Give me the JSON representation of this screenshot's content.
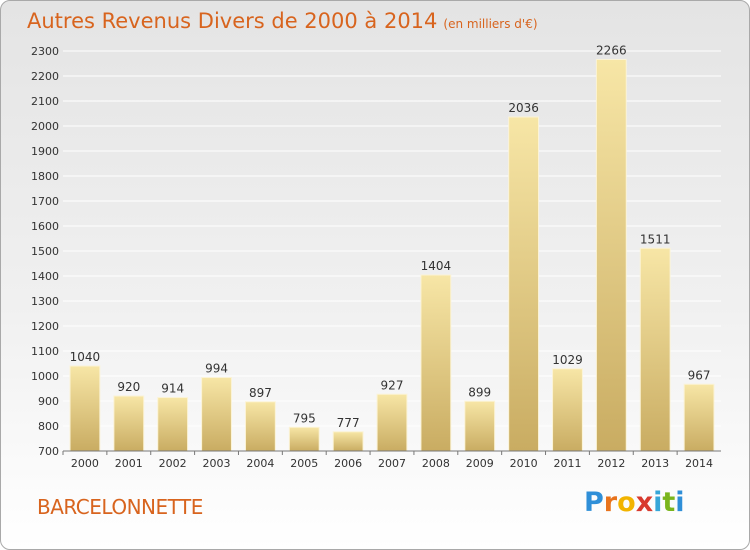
{
  "header": {
    "title": "Autres Revenus Divers de 2000 à 2014",
    "subtitle": "(en milliers d'€)"
  },
  "footer": {
    "city": "BARCELONNETTE",
    "logo_letters": [
      "P",
      "r",
      "o",
      "x",
      "i",
      "t",
      "i"
    ],
    "logo_colors": [
      "#2f8fd8",
      "#e8731c",
      "#f2b400",
      "#d83a2e",
      "#36a6d8",
      "#7ab51d",
      "#2f8fd8"
    ]
  },
  "colors": {
    "title": "#d8641e",
    "bar_light": "#f7e6a6",
    "bar_dark": "#c9ac62",
    "grid": "#ffffff"
  },
  "chart_data": {
    "type": "bar",
    "title": "Autres Revenus Divers de 2000 à 2014",
    "subtitle": "(en milliers d'€)",
    "categories": [
      "2000",
      "2001",
      "2002",
      "2003",
      "2004",
      "2005",
      "2006",
      "2007",
      "2008",
      "2009",
      "2010",
      "2011",
      "2012",
      "2013",
      "2014"
    ],
    "values": [
      1040,
      920,
      914,
      994,
      897,
      795,
      777,
      927,
      1404,
      899,
      2036,
      1029,
      2266,
      1511,
      967
    ],
    "ylim": [
      700,
      2300
    ],
    "yticks": [
      700,
      800,
      900,
      1000,
      1100,
      1200,
      1300,
      1400,
      1500,
      1600,
      1700,
      1800,
      1900,
      2000,
      2100,
      2200,
      2300
    ],
    "grid": true,
    "xlabel": "",
    "ylabel": ""
  }
}
